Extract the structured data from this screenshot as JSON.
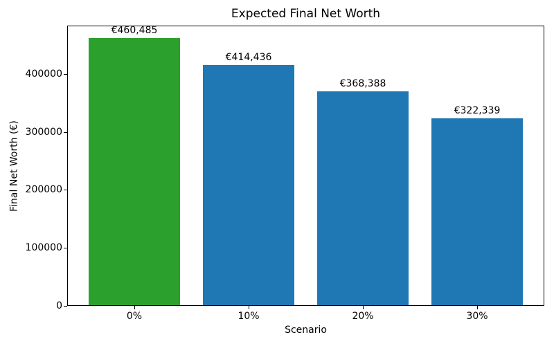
{
  "chart_data": {
    "type": "bar",
    "title": "Expected Final Net Worth",
    "xlabel": "Scenario",
    "ylabel": "Final Net Worth (€)",
    "categories": [
      "0%",
      "10%",
      "20%",
      "30%"
    ],
    "values": [
      460485,
      414436,
      368388,
      322339
    ],
    "value_labels": [
      "€460,485",
      "€414,436",
      "€368,388",
      "€322,339"
    ],
    "bar_colors": [
      "#2ca02c",
      "#1f77b4",
      "#1f77b4",
      "#1f77b4"
    ],
    "ylim": [
      0,
      483500
    ],
    "yticks": [
      0,
      100000,
      200000,
      300000,
      400000
    ],
    "ytick_labels": [
      "0",
      "100000",
      "200000",
      "300000",
      "400000"
    ],
    "grid": false,
    "legend": "none",
    "axis_color": "#000000",
    "background_color": "#ffffff"
  }
}
